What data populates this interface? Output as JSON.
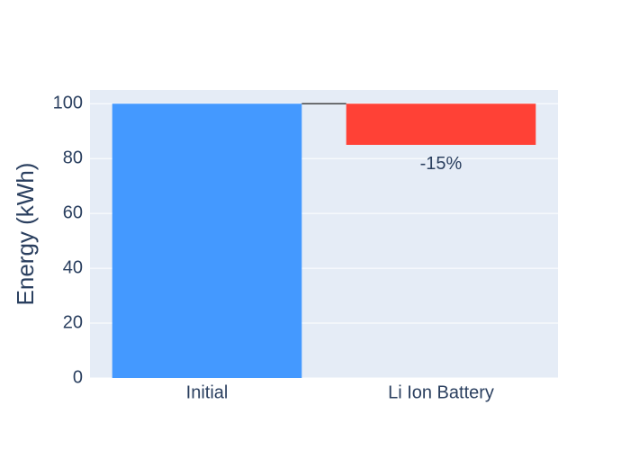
{
  "chart_data": {
    "type": "waterfall",
    "categories": [
      "Initial",
      "Li Ion Battery"
    ],
    "measure": [
      "absolute",
      "relative"
    ],
    "values": [
      100,
      -15
    ],
    "value_labels": [
      null,
      "-15%"
    ],
    "colors": {
      "absolute": "#4499ff",
      "increasing": "#3d9970",
      "decreasing": "#ff4136",
      "connector": "#444444"
    },
    "y_label": "Energy (kWh)",
    "ylim": [
      0,
      105
    ],
    "yticks": [
      0,
      20,
      40,
      60,
      80,
      100
    ],
    "grid": true
  }
}
